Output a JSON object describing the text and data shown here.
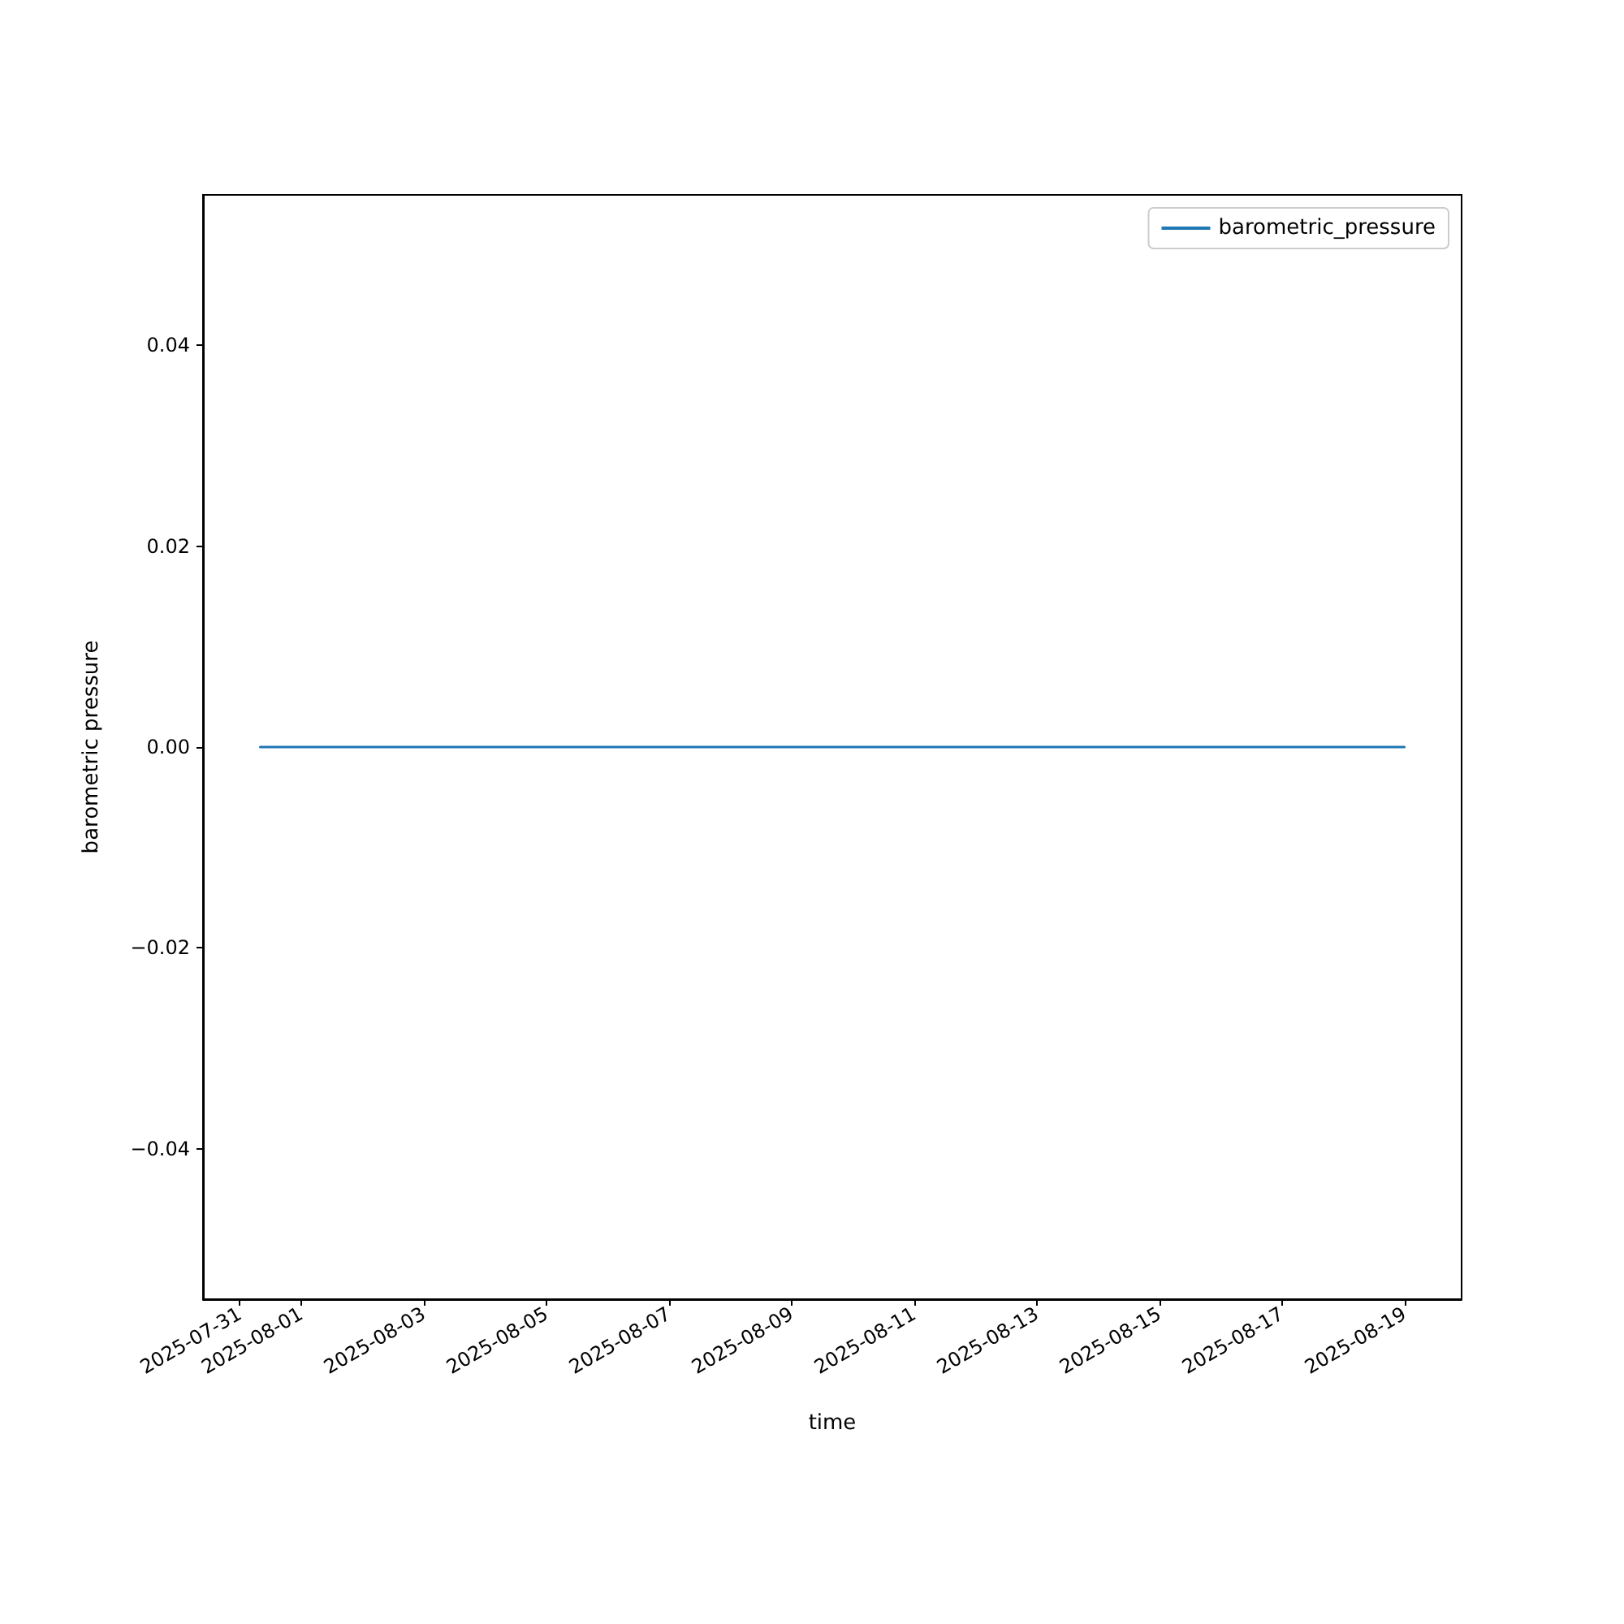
{
  "chart_data": {
    "type": "line",
    "xlabel": "time",
    "ylabel": "barometric pressure",
    "x": [
      "2025-07-31T08:00",
      "2025-08-19T00:00"
    ],
    "series": [
      {
        "name": "barometric_pressure",
        "color": "#1f77b4",
        "values": [
          0,
          0
        ]
      }
    ],
    "xlim": [
      "2025-07-30T09:36",
      "2025-08-19T22:24"
    ],
    "xticks": [
      "2025-07-31",
      "2025-08-01",
      "2025-08-03",
      "2025-08-05",
      "2025-08-07",
      "2025-08-09",
      "2025-08-11",
      "2025-08-13",
      "2025-08-15",
      "2025-08-17",
      "2025-08-19"
    ],
    "ylim": [
      -0.055,
      0.055
    ],
    "yticks": [
      {
        "value": -0.04,
        "label": "−0.04"
      },
      {
        "value": -0.02,
        "label": "−0.02"
      },
      {
        "value": 0,
        "label": "0.00"
      },
      {
        "value": 0.02,
        "label": "0.02"
      },
      {
        "value": 0.04,
        "label": "0.04"
      }
    ],
    "legend": "top right",
    "grid": false,
    "marker": "none",
    "line_style": "solid"
  }
}
